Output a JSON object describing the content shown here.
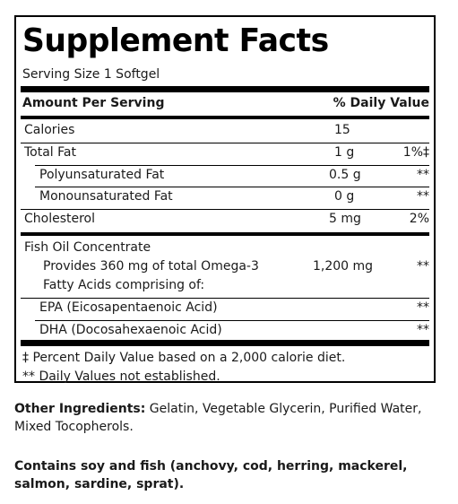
{
  "title": "Supplement Facts",
  "serving_size": "Serving Size 1 Softgel",
  "header": {
    "amount_per_serving": "Amount Per Serving",
    "daily_value": "% Daily Value"
  },
  "rows": [
    {
      "name": "Calories",
      "amount": "15",
      "dv": ""
    },
    {
      "name": "Total Fat",
      "amount": "1 g",
      "dv": "1%‡"
    },
    {
      "name": "Polyunsaturated Fat",
      "amount": "0.5 g",
      "dv": "**"
    },
    {
      "name": "Monounsaturated Fat",
      "amount": "0 g",
      "dv": "**"
    },
    {
      "name": "Cholesterol",
      "amount": "5 mg",
      "dv": "2%"
    }
  ],
  "fish_oil": {
    "name": "Fish Oil Concentrate",
    "desc_line1": "Provides 360 mg of total Omega-3",
    "desc_line2": "Fatty Acids comprising of:",
    "amount": "1,200 mg",
    "dv": "**"
  },
  "sub_rows": [
    {
      "name": "EPA (Eicosapentaenoic Acid)",
      "dv": "**"
    },
    {
      "name": "DHA (Docosahexaenoic Acid)",
      "dv": "**"
    }
  ],
  "footnotes": [
    "‡ Percent Daily Value based on a 2,000 calorie diet.",
    "** Daily Values not established."
  ],
  "other_ingredients": {
    "label": "Other Ingredients:",
    "text": " Gelatin, Vegetable Glycerin, Purified Water, Mixed Tocopherols."
  },
  "allergen": "Contains soy and fish (anchovy, cod, herring, mackerel, salmon, sardine, sprat)."
}
